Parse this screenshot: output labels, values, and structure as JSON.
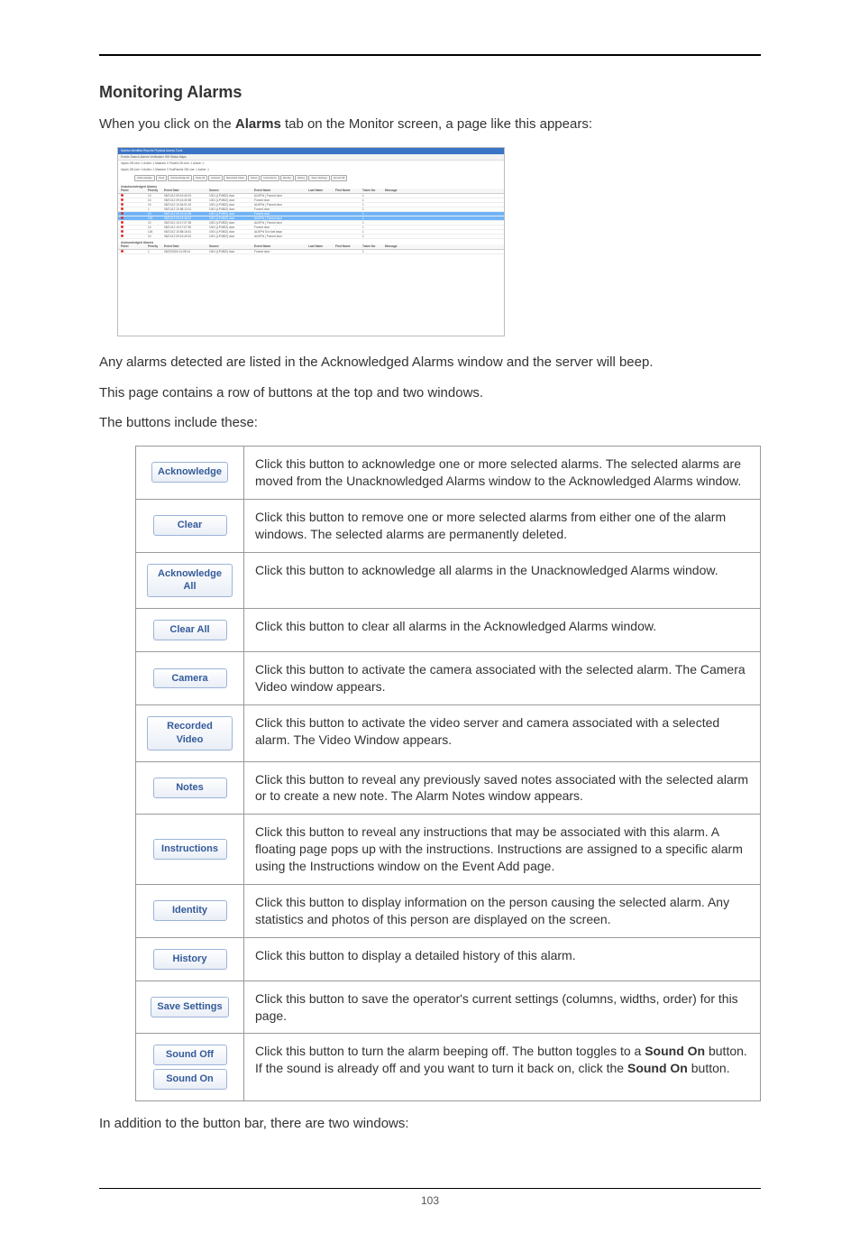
{
  "heading": "Monitoring Alarms",
  "intro_pre": "When you click on the ",
  "intro_bold": "Alarms",
  "intro_post": " tab on the Monitor screen, a page like this appears:",
  "para1": "Any alarms detected are listed in the Acknowledged Alarms window and the server will beep.",
  "para2": "This page contains a row of buttons at the top and two windows.",
  "para3": "The buttons include these:",
  "para4": "In addition to the button bar, there are two windows:",
  "page_number": "103",
  "shot": {
    "tabs": "Monitor   Identities   Reports   Physical Access   Tools",
    "subtabs": "Events   Search   Alarms   Verification   HW Status   Maps",
    "status1": "Inputs Off-Line: 1  Active: 1  Masked: 0       Panels Off-Line: 1  Active: 1",
    "status2": "Inputs Off-Line: 0  Active: 1  Masked: 0       SubPanels Off-Line: 1  Active: 1",
    "buttons": [
      "Acknowledge",
      "Clear",
      "Acknowledge All",
      "Clear All",
      "Camera",
      "Recorded Video",
      "Notes",
      "Instructions",
      "Identity",
      "History",
      "Save Settings",
      "Sound Off"
    ],
    "section1": "Unacknowledged Alarms",
    "section2": "Acknowledged Alarms",
    "columns": [
      "Panel",
      "Priority",
      "Event Date",
      "Source",
      "Event Name",
      "Last Name",
      "First Name",
      "Token No",
      "Message"
    ],
    "rows": [
      {
        "sel": false,
        "pr": "10",
        "date": "05/21/12 09:13:40:31",
        "src": "1001 (LP4502) door",
        "evt": "AUXPnl | Forced door"
      },
      {
        "sel": false,
        "pr": "10",
        "date": "05/21/12 09:13:40:35",
        "src": "1001 (LP4502) door",
        "evt": "Forced door"
      },
      {
        "sel": false,
        "pr": "10",
        "date": "05/21/12 10:34:01:32",
        "src": "1001 (LP4502) door",
        "evt": "AUXPnl | Forced door"
      },
      {
        "sel": false,
        "pr": "1",
        "date": "05/21/12 10:58:12:01",
        "src": "1001 (LP4502) door",
        "evt": "Forced door"
      },
      {
        "sel": true,
        "pr": "10",
        "date": "05/21/12 09:13:40:35",
        "src": "1001 (LP4502) door",
        "evt": "Forced door"
      },
      {
        "sel": true,
        "pr": "104",
        "date": "05/21/12 09:13:46:12",
        "src": "1001 (LP4502) door",
        "evt": "AUXPnl | Forced door"
      },
      {
        "sel": false,
        "pr": "10",
        "date": "05/21/12 10:17:07:28",
        "src": "1001 (LP4502) door",
        "evt": "AUXPnl | Forced door"
      },
      {
        "sel": false,
        "pr": "10",
        "date": "05/21/12 10:17:07:30",
        "src": "1001 (LP4502) door",
        "evt": "Forced door"
      },
      {
        "sel": false,
        "pr": "104",
        "date": "05/21/12 10:58:15:41",
        "src": "1001 (LP4502) door",
        "evt": "AUXPnl Svc fwd seqn"
      },
      {
        "sel": false,
        "pr": "10",
        "date": "05/21/12 09:13:40:31",
        "src": "1001 (LP4502) door",
        "evt": "AUXPnl | Forced door"
      }
    ],
    "rows2": [
      {
        "sel": false,
        "pr": "1",
        "date": "05/20/2024 11:08:14",
        "src": "1001 (LP4502) door",
        "evt": "Forced door"
      }
    ]
  },
  "defs": [
    {
      "labels": [
        "Acknowledge"
      ],
      "desc": "Click this button to acknowledge one or more selected alarms. The selected alarms are moved from the Unacknowledged Alarms window to the Acknowledged Alarms window."
    },
    {
      "labels": [
        "Clear"
      ],
      "desc": "Click this button to remove one or more selected alarms from either one of the alarm windows. The selected alarms are permanently deleted."
    },
    {
      "labels": [
        "Acknowledge All"
      ],
      "desc": "Click this button to acknowledge all alarms in the Unacknowledged Alarms window."
    },
    {
      "labels": [
        "Clear All"
      ],
      "desc": "Click this button to clear all alarms in the Acknowledged Alarms window."
    },
    {
      "labels": [
        "Camera"
      ],
      "desc": "Click this button to activate the camera associated with the selected alarm. The Camera Video window appears."
    },
    {
      "labels": [
        "Recorded Video"
      ],
      "desc": "Click this button to activate the video server and camera associated with a selected alarm. The Video Window appears."
    },
    {
      "labels": [
        "Notes"
      ],
      "desc": "Click this button to reveal any previously saved notes associated with the selected alarm or to create a new note. The Alarm Notes window appears."
    },
    {
      "labels": [
        "Instructions"
      ],
      "desc": "Click this button to reveal any instructions that may be associated with this alarm. A floating page pops up with the instructions. Instructions are assigned to a specific alarm using the Instructions window on the Event Add page."
    },
    {
      "labels": [
        "Identity"
      ],
      "desc": "Click this button to display information on the person causing the selected alarm. Any statistics and photos of this person are displayed on the screen."
    },
    {
      "labels": [
        "History"
      ],
      "desc": "Click this button to display a detailed history of this alarm."
    },
    {
      "labels": [
        "Save Settings"
      ],
      "desc": "Click this button to save the operator's current settings (columns, widths, order) for this page."
    },
    {
      "labels": [
        "Sound Off",
        "Sound On"
      ],
      "desc_parts": [
        {
          "t": "Click this button to turn the alarm beeping off. The button toggles to a "
        },
        {
          "b": "Sound On"
        },
        {
          "t": " button. If the sound is already off and you want to turn it back on, click the "
        },
        {
          "b": "Sound On"
        },
        {
          "t": " button."
        }
      ]
    }
  ]
}
